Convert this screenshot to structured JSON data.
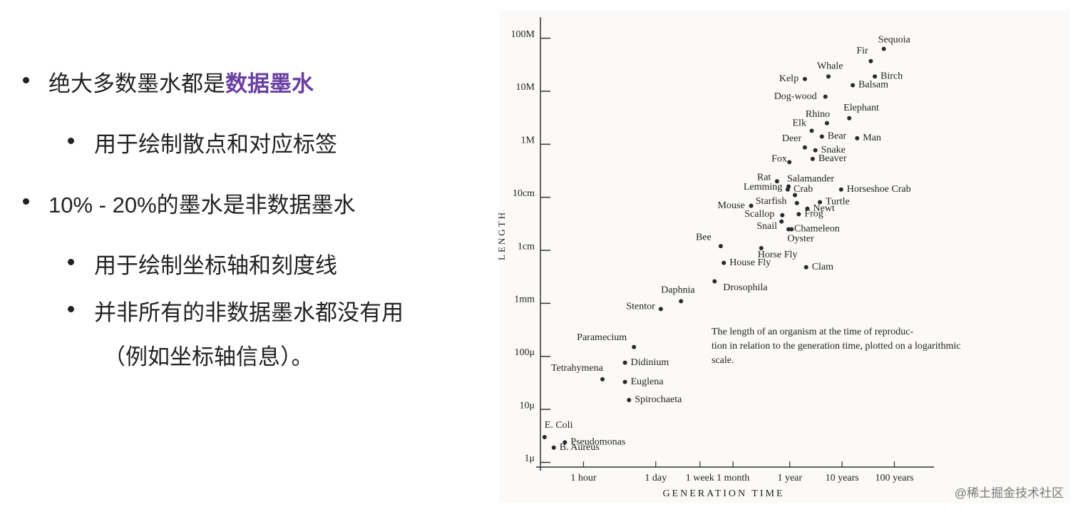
{
  "slide": {
    "bullets": [
      {
        "level": 1,
        "parts": [
          "绝大多数墨水都是",
          "数据墨水"
        ]
      },
      {
        "level": 2,
        "parts": [
          "用于绘制散点和对应标签"
        ]
      },
      {
        "level": 1,
        "parts": [
          "10% - 20%的墨水是非数据墨水"
        ]
      },
      {
        "level": 2,
        "parts": [
          "用于绘制坐标轴和刻度线"
        ]
      },
      {
        "level": 2,
        "parts": [
          "并非所有的非数据墨水都没有用"
        ]
      },
      {
        "level": 3,
        "parts": [
          "（例如坐标轴信息）。"
        ]
      }
    ],
    "watermark": "@稀土掘金技术社区"
  },
  "chart_data": {
    "type": "scatter",
    "log_x": true,
    "log_y": true,
    "x_label": "GENERATION TIME",
    "y_label": "LENGTH",
    "caption": [
      "The length of an organism at the time of reproduc-",
      "tion in relation to the generation time, plotted on a logarithmic",
      "scale."
    ],
    "color": "#2a2a2a",
    "xlim": [
      0.15,
      5000000
    ],
    "ylim": [
      7e-07,
      250
    ],
    "xticks": [
      {
        "value": 1,
        "label": "1 hour"
      },
      {
        "value": 24,
        "label": "1 day"
      },
      {
        "value": 168,
        "label": "1 week"
      },
      {
        "value": 720,
        "label": "1 month"
      },
      {
        "value": 8760,
        "label": "1 year"
      },
      {
        "value": 87600,
        "label": "10 years"
      },
      {
        "value": 876000,
        "label": "100 years"
      }
    ],
    "yticks": [
      {
        "value": 1e-06,
        "label": "1μ"
      },
      {
        "value": 1e-05,
        "label": "10μ"
      },
      {
        "value": 0.0001,
        "label": "100μ"
      },
      {
        "value": 0.001,
        "label": "1mm"
      },
      {
        "value": 0.01,
        "label": "1cm"
      },
      {
        "value": 0.1,
        "label": "10cm"
      },
      {
        "value": 1,
        "label": "1M"
      },
      {
        "value": 10,
        "label": "10M"
      },
      {
        "value": 100,
        "label": "100M"
      }
    ],
    "labels": [
      "E. Coli",
      "Pseudomonas",
      "B. Aureus",
      "Tetrahymena",
      "Paramecium",
      "Didinium",
      "Euglena",
      "Spirochaeta",
      "Stentor",
      "Daphnia",
      "Drosophila",
      "Bee",
      "House Fly",
      "Horse Fly",
      "Clam",
      "Mouse",
      "Starfish",
      "Lemming",
      "Crab",
      "Salamander",
      "Rat",
      "Scallop",
      "Newt",
      "Turtle",
      "Frog",
      "Snail",
      "Chameleon",
      "Oyster",
      "Horseshoe Crab",
      "Fox",
      "Beaver",
      "Snake",
      "Deer",
      "Elk",
      "Bear",
      "Rhino",
      "Man",
      "Elephant",
      "Dog-wood",
      "Balsam",
      "Kelp",
      "Whale",
      "Birch",
      "Fir",
      "Sequoia"
    ],
    "x": [
      0.18,
      0.44,
      0.27,
      2.3,
      9.2,
      6.2,
      6.2,
      7.4,
      30,
      73,
      320,
      420,
      480,
      2500,
      18000,
      1600,
      12000,
      8000,
      11000,
      8300,
      5000,
      6300,
      19000,
      33000,
      13000,
      6100,
      8300,
      9500,
      84000,
      8600,
      24000,
      27000,
      17000,
      23000,
      36000,
      45000,
      170000,
      120000,
      42000,
      140000,
      17000,
      48000,
      370000,
      310000,
      550000
    ],
    "y": [
      3e-06,
      2.4e-06,
      1.9e-06,
      3.7e-05,
      0.00015,
      7.6e-05,
      3.3e-05,
      1.5e-05,
      0.00078,
      0.0011,
      0.0026,
      0.012,
      0.0058,
      0.011,
      0.0048,
      0.069,
      0.078,
      0.14,
      0.11,
      0.16,
      0.2,
      0.046,
      0.061,
      0.081,
      0.048,
      0.035,
      0.025,
      0.025,
      0.14,
      0.46,
      0.53,
      0.77,
      0.87,
      1.8,
      1.4,
      2.5,
      1.3,
      3.1,
      7.9,
      13,
      17,
      19,
      19,
      37,
      63
    ]
  }
}
